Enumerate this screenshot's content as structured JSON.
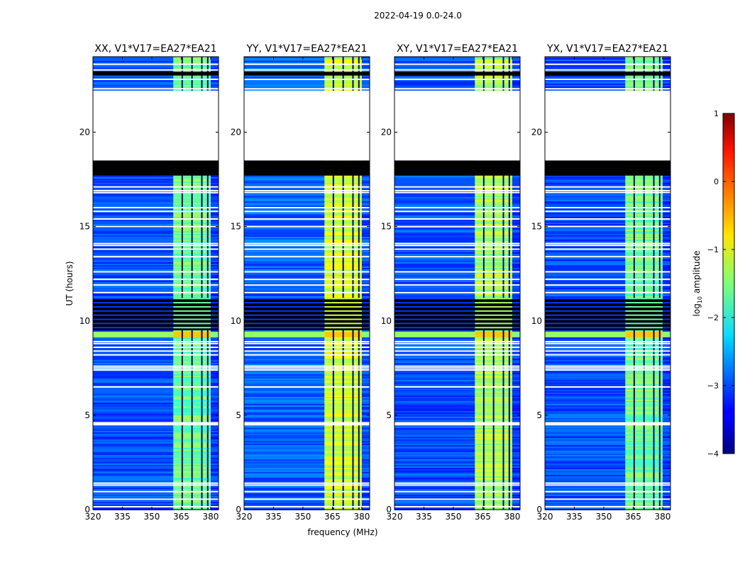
{
  "figure": {
    "suptitle": "2022-04-19 0.0-24.0",
    "shared_xlabel": "frequency (MHz)",
    "shared_ylabel": "UT (hours)"
  },
  "colorbar": {
    "label_prefix": "log",
    "label_subscript": "10",
    "label_suffix": " amplitude",
    "range": [
      -4,
      1
    ],
    "ticks": [
      1,
      0,
      -1,
      -2,
      -3,
      -4
    ],
    "tick_labels": [
      "1",
      "0",
      "−1",
      "−2",
      "−3",
      "−4"
    ],
    "colormap": "jet"
  },
  "chart_data": [
    {
      "type": "heatmap",
      "title": "XX, V1*V17=EA27*EA21",
      "pol": "XX",
      "xlim": [
        320,
        384
      ],
      "ylim": [
        0,
        24
      ],
      "xticks": [
        320,
        335,
        350,
        365,
        380
      ],
      "xtick_labels": [
        "320",
        "335",
        "350",
        "365",
        "380"
      ],
      "yticks": [
        0,
        5,
        10,
        15,
        20
      ],
      "ytick_labels": [
        "0",
        "5",
        "10",
        "15",
        "20"
      ],
      "background_level": -3.0,
      "band_level": -1.6,
      "bright_band_mhz": [
        361,
        380
      ]
    },
    {
      "type": "heatmap",
      "title": "YY, V1*V17=EA27*EA21",
      "pol": "YY",
      "xlim": [
        320,
        384
      ],
      "ylim": [
        0,
        24
      ],
      "xticks": [
        320,
        335,
        350,
        365,
        380
      ],
      "xtick_labels": [
        "320",
        "335",
        "350",
        "365",
        "380"
      ],
      "yticks": [
        0,
        5,
        10,
        15,
        20
      ],
      "ytick_labels": [
        "0",
        "5",
        "10",
        "15",
        "20"
      ],
      "background_level": -2.9,
      "band_level": -1.1,
      "bright_band_mhz": [
        361,
        380
      ]
    },
    {
      "type": "heatmap",
      "title": "XY, V1*V17=EA27*EA21",
      "pol": "XY",
      "xlim": [
        320,
        384
      ],
      "ylim": [
        0,
        24
      ],
      "xticks": [
        320,
        335,
        350,
        365,
        380
      ],
      "xtick_labels": [
        "320",
        "335",
        "350",
        "365",
        "380"
      ],
      "yticks": [
        0,
        5,
        10,
        15,
        20
      ],
      "ytick_labels": [
        "0",
        "5",
        "10",
        "15",
        "20"
      ],
      "background_level": -3.0,
      "band_level": -1.3,
      "bright_band_mhz": [
        361,
        380
      ]
    },
    {
      "type": "heatmap",
      "title": "YX, V1*V17=EA27*EA21",
      "pol": "YX",
      "xlim": [
        320,
        384
      ],
      "ylim": [
        0,
        24
      ],
      "xticks": [
        320,
        335,
        350,
        365,
        380
      ],
      "xtick_labels": [
        "320",
        "335",
        "350",
        "365",
        "380"
      ],
      "yticks": [
        0,
        5,
        10,
        15,
        20
      ],
      "ytick_labels": [
        "0",
        "5",
        "10",
        "15",
        "20"
      ],
      "background_level": -3.0,
      "band_level": -1.6,
      "bright_band_mhz": [
        361,
        380
      ]
    }
  ],
  "shared_time_structure": {
    "no_data_ut": [
      [
        18.5,
        22.2
      ]
    ],
    "dark_ut": [
      [
        17.7,
        18.5
      ],
      [
        23.0,
        23.2
      ],
      [
        9.5,
        11.2
      ]
    ],
    "flagged_row_ut": [
      0.15,
      0.55,
      0.95,
      1.3,
      1.4,
      4.5,
      4.55,
      4.6,
      6.5,
      7.4,
      7.5,
      7.6,
      8.2,
      8.4,
      8.6,
      8.8,
      8.9,
      11.5,
      11.9,
      12.2,
      12.6,
      13.4,
      13.8,
      14.0,
      14.1,
      15.0,
      15.4,
      15.8,
      16.0,
      16.8,
      16.9,
      17.1,
      22.3,
      22.8,
      23.3,
      23.6
    ],
    "band_gaps_mhz": [
      365.5,
      370.5,
      375.5,
      378.5
    ],
    "band_highlight_ut": [
      [
        9.2,
        9.5
      ]
    ]
  }
}
